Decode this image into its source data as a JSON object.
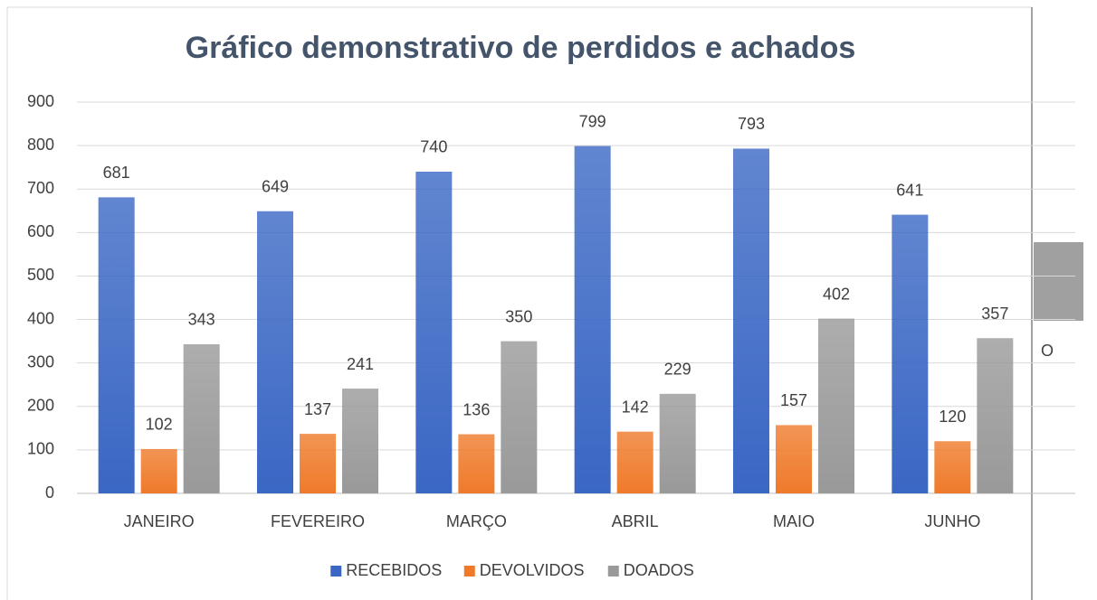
{
  "chart_data": {
    "type": "bar",
    "title": "Gráfico demonstrativo de perdidos e achados",
    "categories": [
      "JANEIRO",
      "FEVEREIRO",
      "MARÇO",
      "ABRIL",
      "MAIO",
      "JUNHO"
    ],
    "series": [
      {
        "name": "RECEBIDOS",
        "color": "#3a67c4",
        "values": [
          681,
          649,
          740,
          799,
          793,
          641
        ]
      },
      {
        "name": "DEVOLVIDOS",
        "color": "#ef7a2a",
        "values": [
          102,
          137,
          136,
          142,
          157,
          120
        ]
      },
      {
        "name": "DOADOS",
        "color": "#999999",
        "values": [
          343,
          241,
          350,
          229,
          402,
          357
        ]
      }
    ],
    "ylim": [
      0,
      900
    ],
    "yticks": [
      0,
      100,
      200,
      300,
      400,
      500,
      600,
      700,
      800,
      900
    ],
    "grid": true,
    "legend": "bottom",
    "annotations": [
      "O"
    ]
  }
}
